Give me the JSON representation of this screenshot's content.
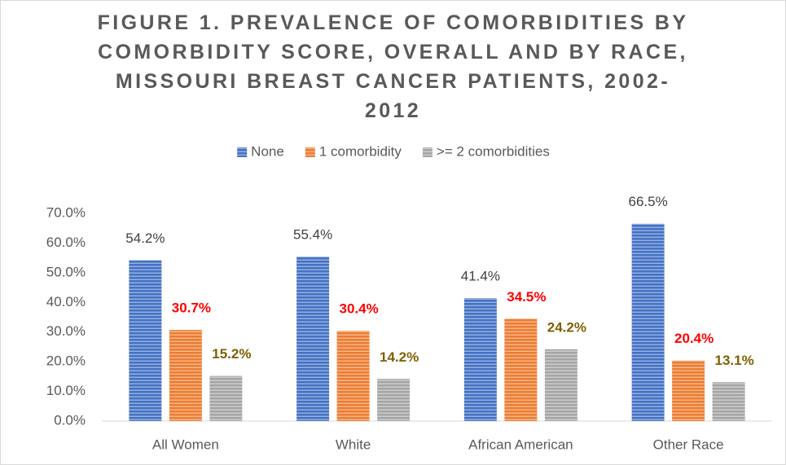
{
  "chart_data": {
    "type": "bar",
    "title": "FIGURE 1. PREVALENCE OF COMORBIDITIES BY COMORBIDITY SCORE, OVERALL AND BY RACE, MISSOURI BREAST CANCER PATIENTS, 2002-2012",
    "categories": [
      "All Women",
      "White",
      "African American",
      "Other Race"
    ],
    "series": [
      {
        "name": "None",
        "color": "#4472c4",
        "label_color": "#404040",
        "values": [
          54.2,
          55.4,
          41.4,
          66.5
        ],
        "value_labels": [
          "54.2%",
          "55.4%",
          "41.4%",
          "66.5%"
        ]
      },
      {
        "name": "1 comorbidity",
        "color": "#ed7d31",
        "label_color": "#ff0000",
        "values": [
          30.7,
          30.4,
          34.5,
          20.4
        ],
        "value_labels": [
          "30.7%",
          "30.4%",
          "34.5%",
          "20.4%"
        ]
      },
      {
        "name": ">= 2 comorbidities",
        "color": "#a5a5a5",
        "label_color": "#7f6000",
        "values": [
          15.2,
          14.2,
          24.2,
          13.1
        ],
        "value_labels": [
          "15.2%",
          "14.2%",
          "24.2%",
          "13.1%"
        ]
      }
    ],
    "ylim": [
      0,
      70
    ],
    "yticks": [
      {
        "value": 0,
        "label": "0.0%"
      },
      {
        "value": 10,
        "label": "10.0%"
      },
      {
        "value": 20,
        "label": "20.0%"
      },
      {
        "value": 30,
        "label": "30.0%"
      },
      {
        "value": 40,
        "label": "40.0%"
      },
      {
        "value": 50,
        "label": "50.0%"
      },
      {
        "value": 60,
        "label": "60.0%"
      },
      {
        "value": 70,
        "label": "70.0%"
      }
    ],
    "grid": false,
    "legend": "top"
  }
}
